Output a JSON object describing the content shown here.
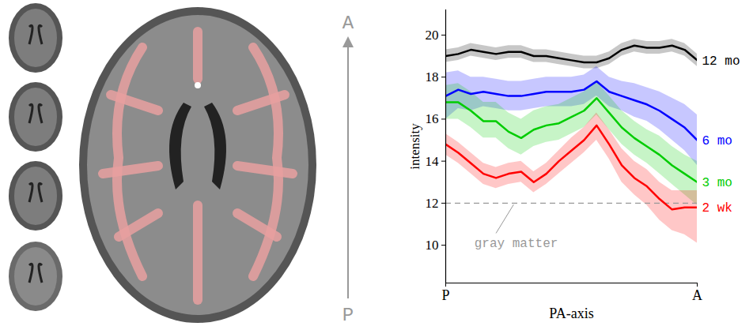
{
  "chart_data": {
    "type": "line",
    "x_label": "PA-axis",
    "y_label": "intensity",
    "arrow_labels": {
      "top": "A",
      "bottom": "P"
    },
    "x": [
      0,
      5,
      10,
      15,
      20,
      25,
      30,
      35,
      40,
      45,
      50,
      55,
      60,
      65,
      70,
      75,
      80,
      85,
      90,
      95,
      100
    ],
    "xlim": [
      0,
      100
    ],
    "xticks": [
      {
        "value": 0,
        "label": "P"
      },
      {
        "value": 100,
        "label": "A"
      }
    ],
    "ylim": [
      8.2,
      21.2
    ],
    "yticks": [
      10,
      12,
      14,
      16,
      18,
      20
    ],
    "grid": false,
    "reference_line": {
      "value": 12,
      "label": "gray matter",
      "line_style": "dashed"
    },
    "series": [
      {
        "name": "12 mo",
        "color": "#000000",
        "values": [
          19.0,
          19.1,
          19.3,
          19.2,
          19.1,
          19.2,
          19.2,
          19.0,
          19.0,
          18.9,
          18.8,
          18.7,
          18.7,
          18.9,
          19.3,
          19.5,
          19.4,
          19.4,
          19.5,
          19.3,
          18.8
        ],
        "lower": [
          18.7,
          18.8,
          19.0,
          18.9,
          18.8,
          18.9,
          18.9,
          18.7,
          18.7,
          18.6,
          18.5,
          18.4,
          18.4,
          18.6,
          19.0,
          19.2,
          19.1,
          19.1,
          19.2,
          19.0,
          18.5
        ],
        "upper": [
          19.3,
          19.4,
          19.6,
          19.5,
          19.4,
          19.5,
          19.5,
          19.3,
          19.3,
          19.2,
          19.1,
          19.0,
          19.0,
          19.2,
          19.6,
          19.8,
          19.7,
          19.7,
          19.8,
          19.6,
          19.1
        ]
      },
      {
        "name": "6 mo",
        "color": "#0000ff",
        "values": [
          17.1,
          17.4,
          17.2,
          17.3,
          17.2,
          17.1,
          17.1,
          17.2,
          17.3,
          17.3,
          17.3,
          17.4,
          17.8,
          17.3,
          17.1,
          16.9,
          16.7,
          16.4,
          16.0,
          15.6,
          15.0
        ],
        "lower": [
          16.0,
          16.5,
          16.4,
          16.6,
          16.5,
          16.4,
          16.4,
          16.5,
          16.6,
          16.6,
          16.6,
          16.7,
          17.1,
          16.6,
          16.4,
          16.1,
          15.9,
          15.5,
          15.0,
          14.5,
          13.8
        ],
        "upper": [
          18.2,
          18.3,
          18.0,
          18.0,
          17.9,
          17.8,
          17.8,
          17.9,
          18.0,
          18.0,
          18.0,
          18.1,
          18.5,
          18.0,
          17.8,
          17.7,
          17.5,
          17.3,
          17.0,
          16.7,
          16.2
        ]
      },
      {
        "name": "3 mo",
        "color": "#00cc00",
        "values": [
          16.8,
          16.8,
          16.4,
          15.9,
          15.9,
          15.4,
          15.1,
          15.5,
          15.7,
          15.8,
          16.1,
          16.4,
          17.0,
          16.3,
          15.6,
          15.1,
          14.7,
          14.3,
          13.8,
          13.4,
          13.0
        ],
        "lower": [
          16.0,
          16.0,
          15.6,
          15.1,
          15.1,
          14.6,
          14.3,
          14.7,
          14.9,
          15.0,
          15.3,
          15.6,
          16.2,
          15.5,
          14.8,
          14.3,
          13.9,
          13.4,
          12.9,
          12.4,
          11.9
        ],
        "upper": [
          17.6,
          17.7,
          17.3,
          16.8,
          16.8,
          16.3,
          16.0,
          16.4,
          16.6,
          16.7,
          17.0,
          17.3,
          17.8,
          17.1,
          16.4,
          15.9,
          15.5,
          15.2,
          14.7,
          14.3,
          14.0
        ]
      },
      {
        "name": "2 wk",
        "color": "#ff0000",
        "values": [
          14.8,
          14.4,
          13.9,
          13.4,
          13.2,
          13.4,
          13.5,
          13.0,
          13.4,
          14.0,
          14.5,
          15.0,
          15.7,
          14.8,
          13.8,
          13.2,
          12.8,
          12.2,
          11.7,
          11.8,
          11.8
        ],
        "lower": [
          14.3,
          13.9,
          13.4,
          12.9,
          12.7,
          12.9,
          13.0,
          12.5,
          12.9,
          13.4,
          13.9,
          14.4,
          15.0,
          14.1,
          13.0,
          12.4,
          11.9,
          11.2,
          10.7,
          10.5,
          10.1
        ],
        "upper": [
          15.3,
          14.9,
          14.4,
          13.9,
          13.7,
          13.9,
          14.0,
          13.5,
          13.9,
          14.5,
          15.1,
          15.6,
          16.3,
          15.5,
          14.6,
          14.0,
          13.6,
          13.0,
          12.6,
          12.6,
          12.6
        ]
      }
    ]
  }
}
